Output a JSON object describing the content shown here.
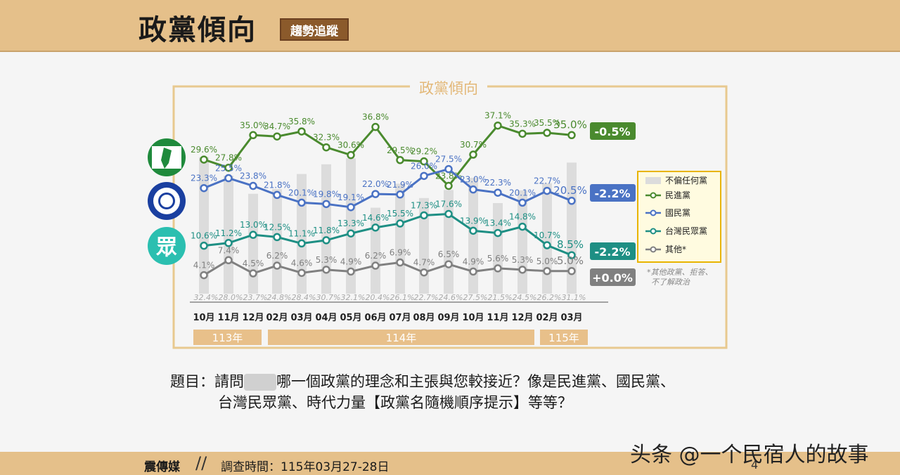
{
  "header": {
    "title": "政黨傾向",
    "badge": "趨勢追蹤"
  },
  "chart_data": {
    "type": "line",
    "title": "政黨傾向",
    "x": [
      "10月",
      "11月",
      "12月",
      "02月",
      "03月",
      "04月",
      "05月",
      "06月",
      "07月",
      "08月",
      "09月",
      "10月",
      "11月",
      "12月",
      "02月",
      "03月"
    ],
    "year_labels": [
      "113年",
      "114年",
      "115年"
    ],
    "bar_series": {
      "name": "不偏任何黨",
      "values": [
        32.4,
        28.0,
        23.7,
        24.8,
        28.4,
        30.7,
        32.1,
        20.4,
        26.1,
        22.7,
        24.6,
        27.5,
        21.5,
        24.5,
        26.2,
        31.1
      ]
    },
    "series": [
      {
        "name": "民進黨",
        "color": "#4a8a2e",
        "values": [
          29.6,
          27.8,
          35.0,
          34.7,
          35.8,
          32.3,
          30.6,
          36.8,
          29.5,
          29.2,
          23.8,
          30.7,
          37.1,
          35.3,
          35.5,
          35.0
        ],
        "change": "-0.5%"
      },
      {
        "name": "國民黨",
        "color": "#4a72c4",
        "values": [
          23.3,
          25.5,
          23.8,
          21.8,
          20.1,
          19.8,
          19.1,
          22.0,
          21.9,
          26.0,
          27.5,
          23.0,
          22.3,
          20.1,
          22.7,
          20.5
        ],
        "change": "-2.2%"
      },
      {
        "name": "台灣民眾黨",
        "color": "#1e8f84",
        "values": [
          10.6,
          11.2,
          13.0,
          12.5,
          11.1,
          11.8,
          13.3,
          14.6,
          15.5,
          17.3,
          17.6,
          13.9,
          13.4,
          14.8,
          10.7,
          8.5
        ],
        "change": "-2.2%"
      },
      {
        "name": "其他*",
        "color": "#808080",
        "values": [
          4.1,
          7.4,
          4.5,
          6.2,
          4.6,
          5.3,
          4.9,
          6.2,
          6.9,
          4.7,
          6.5,
          4.9,
          5.6,
          5.3,
          5.0,
          5.0
        ],
        "change": "+0.0%"
      }
    ],
    "legend_position": "right",
    "note": "*其他政黨、拒答、不了解政治"
  },
  "question": {
    "line1_a": "題目：請問",
    "line1_b": "哪一個政黨的理念和主張與您較接近？像是民進黨、國民黨、",
    "line2": "台灣民眾黨、時代力量【政黨名隨機順序提示】等等？"
  },
  "footer": {
    "brand": "震傳媒",
    "date": "調查時間：115年03月27-28日",
    "page": "4"
  },
  "watermark": "头条 @一个民宿人的故事",
  "colors": {
    "header_bg": "#e5c08a",
    "frame": "#e8c98f",
    "dpp": "#4a8a2e",
    "kmt": "#4a72c4",
    "tpp": "#1e8f84",
    "other": "#808080"
  }
}
